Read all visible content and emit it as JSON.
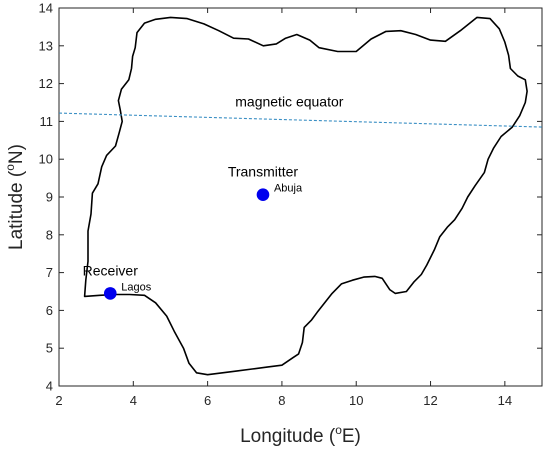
{
  "chart_data": {
    "type": "map",
    "xlabel": {
      "prefix": "Longitude (",
      "sup": "o",
      "suffix": "E)"
    },
    "ylabel": {
      "prefix": "Latitude (",
      "sup": "o",
      "suffix": "N)"
    },
    "xlim": [
      2,
      15
    ],
    "ylim": [
      4,
      14
    ],
    "xticks": [
      "2",
      "4",
      "6",
      "8",
      "10",
      "12",
      "14"
    ],
    "yticks": [
      "4",
      "5",
      "6",
      "7",
      "8",
      "9",
      "10",
      "11",
      "12",
      "13",
      "14"
    ],
    "grid": false,
    "boundary_color": "#000000",
    "marker_color": "#0000ee",
    "equator_color": "#3a8fc4",
    "magnetic_equator": {
      "label": "magnetic equator",
      "points": [
        [
          2,
          11.22
        ],
        [
          15,
          10.85
        ]
      ]
    },
    "stations": [
      {
        "role": "Transmitter",
        "city": "Abuja",
        "lon": 7.49,
        "lat": 9.06
      },
      {
        "role": "Receiver",
        "city": "Lagos",
        "lon": 3.38,
        "lat": 6.45
      }
    ],
    "boundary": [
      [
        2.69,
        6.37
      ],
      [
        2.72,
        6.8
      ],
      [
        2.78,
        7.3
      ],
      [
        2.78,
        7.75
      ],
      [
        2.78,
        8.1
      ],
      [
        2.86,
        8.55
      ],
      [
        2.9,
        9.1
      ],
      [
        3.05,
        9.35
      ],
      [
        3.15,
        9.8
      ],
      [
        3.28,
        10.1
      ],
      [
        3.52,
        10.35
      ],
      [
        3.62,
        10.7
      ],
      [
        3.7,
        11.0
      ],
      [
        3.65,
        11.3
      ],
      [
        3.6,
        11.55
      ],
      [
        3.68,
        11.85
      ],
      [
        3.88,
        12.1
      ],
      [
        3.95,
        12.4
      ],
      [
        3.98,
        12.72
      ],
      [
        4.05,
        12.95
      ],
      [
        4.1,
        13.35
      ],
      [
        4.3,
        13.6
      ],
      [
        4.6,
        13.7
      ],
      [
        5.0,
        13.75
      ],
      [
        5.45,
        13.72
      ],
      [
        5.9,
        13.58
      ],
      [
        6.3,
        13.4
      ],
      [
        6.7,
        13.2
      ],
      [
        7.1,
        13.18
      ],
      [
        7.5,
        13.0
      ],
      [
        7.85,
        13.05
      ],
      [
        8.1,
        13.2
      ],
      [
        8.4,
        13.3
      ],
      [
        8.75,
        13.15
      ],
      [
        9.0,
        12.95
      ],
      [
        9.5,
        12.85
      ],
      [
        10.0,
        12.85
      ],
      [
        10.4,
        13.18
      ],
      [
        10.8,
        13.38
      ],
      [
        11.2,
        13.4
      ],
      [
        11.6,
        13.3
      ],
      [
        12.0,
        13.15
      ],
      [
        12.4,
        13.12
      ],
      [
        12.8,
        13.4
      ],
      [
        13.25,
        13.75
      ],
      [
        13.6,
        13.72
      ],
      [
        13.85,
        13.45
      ],
      [
        14.0,
        13.1
      ],
      [
        14.1,
        12.75
      ],
      [
        14.15,
        12.4
      ],
      [
        14.35,
        12.2
      ],
      [
        14.55,
        12.1
      ],
      [
        14.6,
        11.8
      ],
      [
        14.55,
        11.5
      ],
      [
        14.4,
        11.15
      ],
      [
        14.2,
        10.85
      ],
      [
        13.9,
        10.6
      ],
      [
        13.7,
        10.3
      ],
      [
        13.55,
        10.0
      ],
      [
        13.45,
        9.65
      ],
      [
        13.2,
        9.3
      ],
      [
        13.0,
        9.0
      ],
      [
        12.85,
        8.7
      ],
      [
        12.65,
        8.4
      ],
      [
        12.45,
        8.2
      ],
      [
        12.25,
        7.95
      ],
      [
        12.1,
        7.6
      ],
      [
        11.9,
        7.2
      ],
      [
        11.75,
        6.95
      ],
      [
        11.55,
        6.75
      ],
      [
        11.35,
        6.5
      ],
      [
        11.05,
        6.45
      ],
      [
        10.9,
        6.55
      ],
      [
        10.7,
        6.85
      ],
      [
        10.5,
        6.9
      ],
      [
        10.2,
        6.88
      ],
      [
        9.9,
        6.8
      ],
      [
        9.6,
        6.7
      ],
      [
        9.35,
        6.45
      ],
      [
        9.15,
        6.2
      ],
      [
        8.95,
        5.95
      ],
      [
        8.8,
        5.75
      ],
      [
        8.6,
        5.55
      ],
      [
        8.55,
        5.15
      ],
      [
        8.45,
        4.85
      ],
      [
        8.3,
        4.75
      ],
      [
        8.0,
        4.55
      ],
      [
        7.6,
        4.5
      ],
      [
        7.2,
        4.45
      ],
      [
        6.8,
        4.4
      ],
      [
        6.4,
        4.35
      ],
      [
        6.0,
        4.3
      ],
      [
        5.7,
        4.35
      ],
      [
        5.5,
        4.6
      ],
      [
        5.35,
        5.0
      ],
      [
        5.1,
        5.45
      ],
      [
        4.9,
        5.85
      ],
      [
        4.6,
        6.2
      ],
      [
        4.3,
        6.4
      ],
      [
        3.9,
        6.42
      ],
      [
        3.5,
        6.42
      ],
      [
        3.1,
        6.4
      ],
      [
        2.69,
        6.37
      ]
    ]
  }
}
